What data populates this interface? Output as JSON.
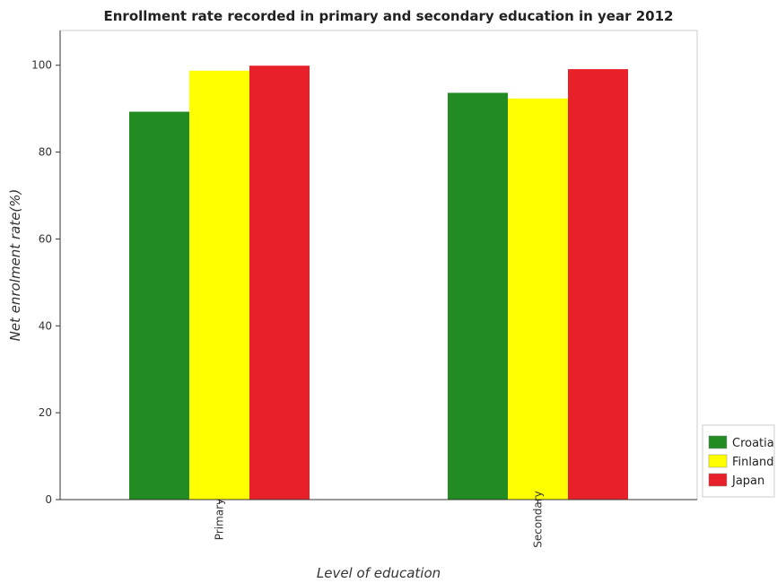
{
  "chart_data": {
    "type": "bar",
    "title": "Enrollment rate recorded in primary and secondary education in year 2012",
    "xlabel": "Level of education",
    "ylabel": "Net enrolment rate(%)",
    "categories": [
      "Primary",
      "Secondary"
    ],
    "series": [
      {
        "name": "Croatia",
        "color": "#228B22",
        "values": [
          89.3,
          93.65
        ]
      },
      {
        "name": "Finland",
        "color": "#FFFF00",
        "values": [
          98.75,
          92.35
        ]
      },
      {
        "name": "Japan",
        "color": "#E8202A",
        "values": [
          99.9,
          99.1
        ]
      }
    ],
    "ylim": [
      0,
      108
    ],
    "yticks": [
      0,
      20,
      40,
      60,
      80,
      100
    ],
    "grid": false,
    "legend": "bottom-right"
  }
}
